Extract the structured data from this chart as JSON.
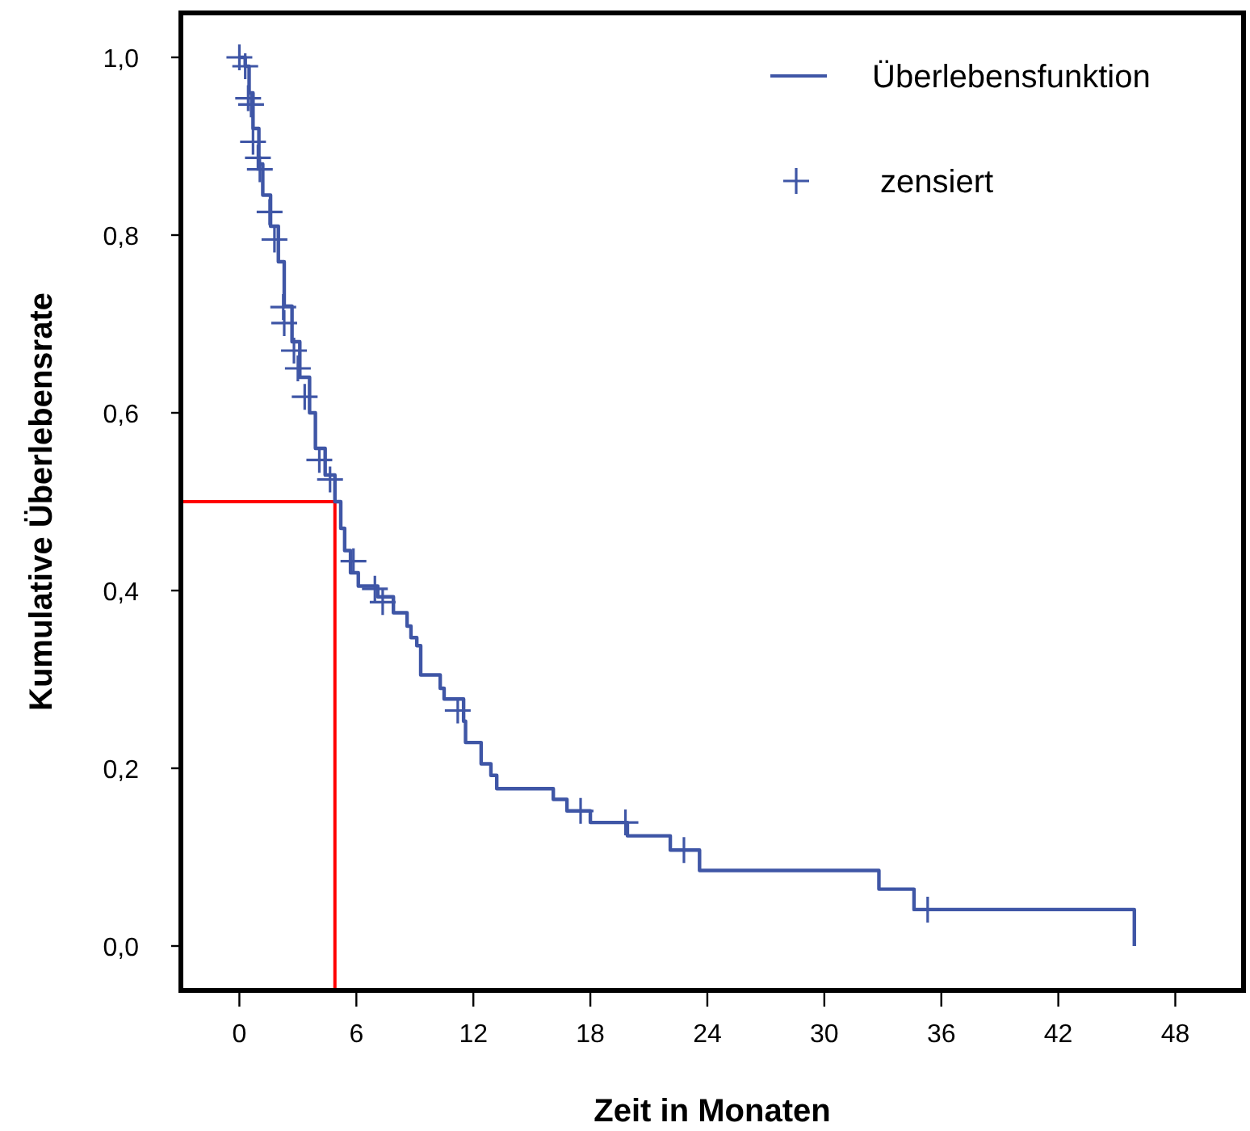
{
  "chart_data": {
    "type": "step",
    "xlabel": "Zeit in Monaten",
    "ylabel": "Kumulative Überlebensrate",
    "xlim": [
      -3,
      51.5
    ],
    "ylim": [
      -0.05,
      1.05
    ],
    "xticks": [
      0,
      6,
      12,
      18,
      24,
      30,
      36,
      42,
      48
    ],
    "yticks": [
      {
        "value": 0,
        "label": "0,0"
      },
      {
        "value": 0.2,
        "label": "0,2"
      },
      {
        "value": 0.4,
        "label": "0,4"
      },
      {
        "value": 0.6,
        "label": "0,6"
      },
      {
        "value": 0.8,
        "label": "0,8"
      },
      {
        "value": 1,
        "label": "1,0"
      }
    ],
    "legend": "top right",
    "grid": false,
    "series": [
      {
        "name": "Überlebensfunktion",
        "color": "#3f56a6",
        "x": [
          0,
          0.3,
          0.5,
          0.7,
          1.0,
          1.2,
          1.6,
          2.0,
          2.3,
          2.7,
          3.1,
          3.6,
          3.9,
          4.4,
          4.9,
          5.2,
          5.4,
          5.7,
          6.1,
          7.1,
          7.9,
          8.6,
          8.8,
          9.1,
          9.3,
          10.3,
          10.5,
          11.5,
          11.6,
          12.4,
          12.9,
          13.2,
          16.1,
          16.8,
          18.0,
          19.9,
          22.1,
          23.6,
          32.8,
          34.6,
          45.9
        ],
        "values": [
          1.0,
          0.99,
          0.96,
          0.92,
          0.88,
          0.845,
          0.81,
          0.77,
          0.72,
          0.68,
          0.64,
          0.6,
          0.56,
          0.53,
          0.5,
          0.47,
          0.445,
          0.42,
          0.405,
          0.393,
          0.375,
          0.36,
          0.347,
          0.338,
          0.305,
          0.29,
          0.278,
          0.253,
          0.229,
          0.205,
          0.192,
          0.177,
          0.165,
          0.152,
          0.139,
          0.124,
          0.108,
          0.085,
          0.064,
          0.041,
          0.0
        ]
      },
      {
        "name": "zensiert",
        "type": "scatter",
        "color": "#3f56a6",
        "marker": "cross",
        "x": [
          0.0,
          0.3,
          0.45,
          0.6,
          0.7,
          0.95,
          1.05,
          1.55,
          1.8,
          2.25,
          2.3,
          2.8,
          3.0,
          3.35,
          4.1,
          4.65,
          5.85,
          6.95,
          7.35,
          11.2,
          17.5,
          19.8,
          22.8,
          35.3
        ],
        "values": [
          1.0,
          0.99,
          0.954,
          0.947,
          0.905,
          0.887,
          0.874,
          0.826,
          0.795,
          0.719,
          0.701,
          0.67,
          0.65,
          0.618,
          0.547,
          0.525,
          0.433,
          0.402,
          0.387,
          0.265,
          0.152,
          0.139,
          0.108,
          0.041
        ]
      }
    ],
    "ref_lines": [
      {
        "axis": "y",
        "value": 0.5,
        "color": "#ff0000"
      },
      {
        "axis": "x",
        "value": 4.9,
        "color": "#ff0000"
      }
    ]
  }
}
